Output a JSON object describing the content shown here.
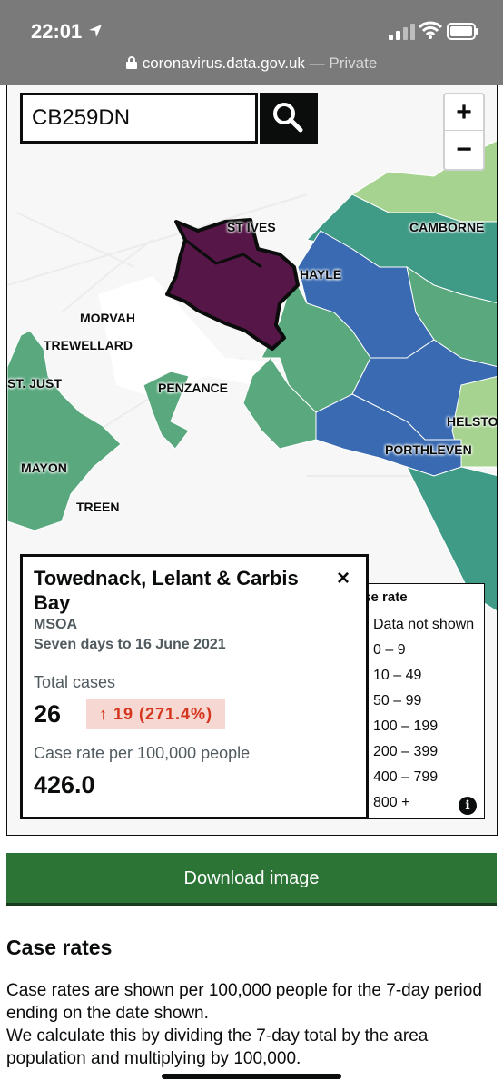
{
  "status_bar": {
    "time": "22:01"
  },
  "browser": {
    "url": "coronavirus.data.gov.uk",
    "separator": " — ",
    "mode": "Private"
  },
  "search": {
    "value": "CB259DN"
  },
  "zoom": {
    "in_label": "+",
    "out_label": "−"
  },
  "places": {
    "st_ives": "ST IVES",
    "camborne": "CAMBORNE",
    "hayle": "HAYLE",
    "morvah": "MORVAH",
    "trewellard": "TREWELLARD",
    "st_just": "ST. JUST",
    "penzance": "PENZANCE",
    "helston": "HELSTO",
    "porthleven": "PORTHLEVEN",
    "mayon": "MAYON",
    "treen": "TREEN"
  },
  "popup": {
    "title": "Towednack, Lelant & Carbis Bay",
    "close_label": "×",
    "area_type": "MSOA",
    "period": "Seven days to 16 June 2021",
    "total_label": "Total cases",
    "total_value": "26",
    "change": "↑ 19 (271.4%)",
    "rate_label": "Case rate per 100,000 people",
    "rate_value": "426.0"
  },
  "legend": {
    "title": "Case rate",
    "info_label": "i",
    "items": [
      {
        "label": "Data not shown",
        "color": "#ffffff"
      },
      {
        "label": "0 – 9",
        "color": "#e8f1b0"
      },
      {
        "label": "10 – 49",
        "color": "#cfe8c4"
      },
      {
        "label": "50 – 99",
        "color": "#cfe4e2"
      },
      {
        "label": "100 – 199",
        "color": "#cfdde8"
      },
      {
        "label": "200 – 399",
        "color": "#d6d8ea"
      },
      {
        "label": "400 – 799",
        "color": "#e2d2dc"
      },
      {
        "label": "800 +",
        "color": "#e8d4dc"
      }
    ]
  },
  "map_colors": {
    "land": "#f7f7f7",
    "green_light": "#a6d38f",
    "green": "#5aa87e",
    "teal": "#3f9a86",
    "blue": "#3a6bb2",
    "purple": "#561648"
  },
  "download_label": "Download image",
  "section": {
    "heading": "Case rates",
    "line1": "Case rates are shown per 100,000 people for the 7-day period ending on the date shown.",
    "line2": "We calculate this by dividing the 7-day total by the area population and multiplying by 100,000."
  }
}
